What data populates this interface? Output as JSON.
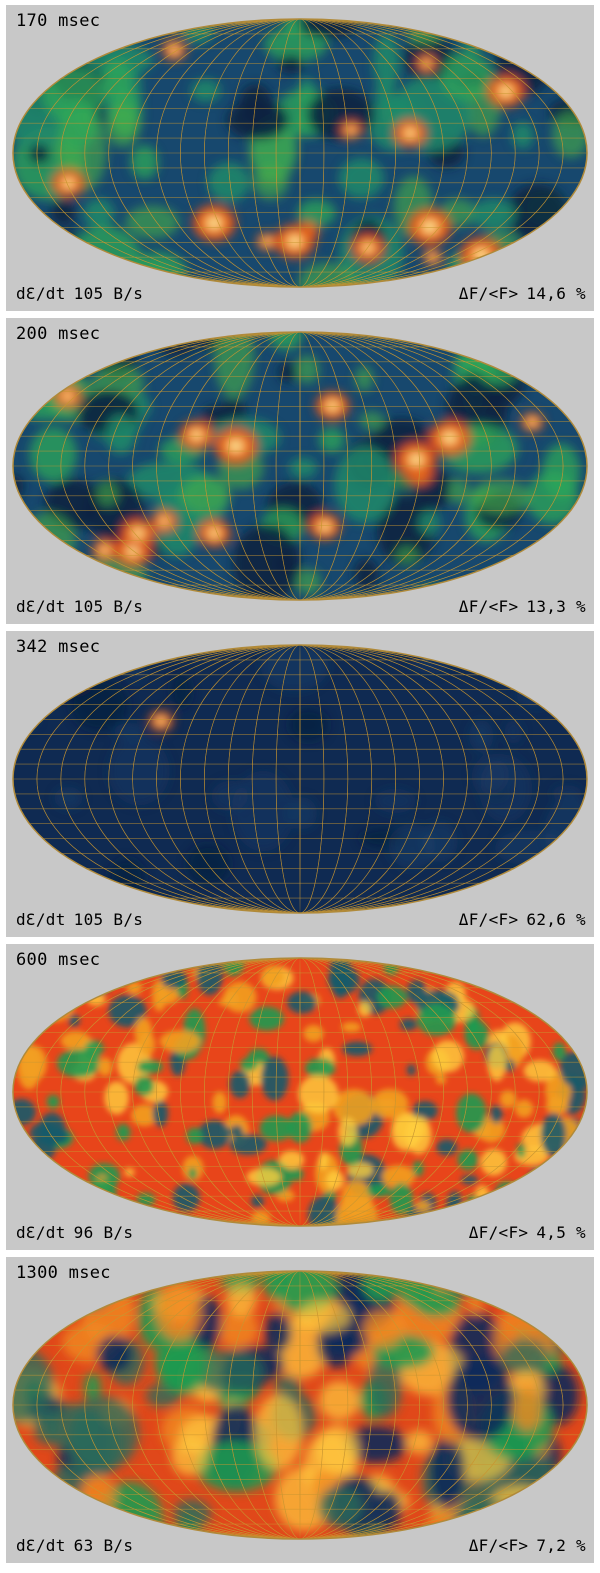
{
  "panels": [
    {
      "time": "170 msec",
      "rate_label": "dƐ/dt",
      "rate_value": "105 B/s",
      "flux_label": "ΔF/<F>",
      "flux_value": "14,6 %",
      "palette": "cold"
    },
    {
      "time": "200 msec",
      "rate_label": "dƐ/dt",
      "rate_value": "105 B/s",
      "flux_label": "ΔF/<F>",
      "flux_value": "13,3 %",
      "palette": "cold"
    },
    {
      "time": "342 msec",
      "rate_label": "dƐ/dt",
      "rate_value": "105 B/s",
      "flux_label": "ΔF/<F>",
      "flux_value": "62,6 %",
      "palette": "dark"
    },
    {
      "time": "600 msec",
      "rate_label": "dƐ/dt",
      "rate_value": "96 B/s",
      "flux_label": "ΔF/<F>",
      "flux_value": "4,5 %",
      "palette": "hot"
    },
    {
      "time": "1300 msec",
      "rate_label": "dƐ/dt",
      "rate_value": "63 B/s",
      "flux_label": "ΔF/<F>",
      "flux_value": "7,2 %",
      "palette": "warm"
    }
  ],
  "colors": {
    "background": "#c8c8c8",
    "grid": "#c89632",
    "cold_base": "#17486e",
    "hot_base": "#e8451a"
  }
}
